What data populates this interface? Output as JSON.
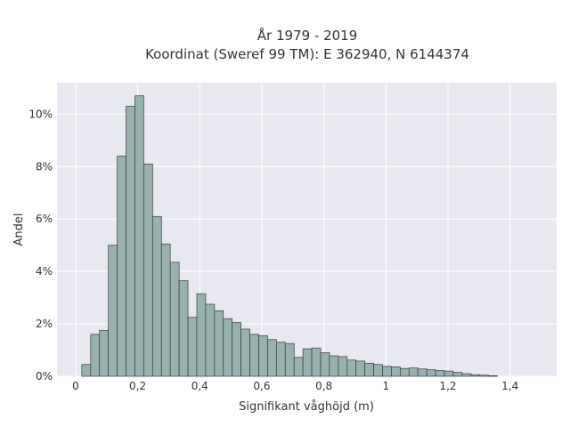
{
  "chart_data": {
    "type": "bar",
    "title": "År 1979 - 2019",
    "subtitle": "Koordinat (Sweref 99 TM): E 362940, N 6144374",
    "xlabel": "Signifikant våghöjd (m)",
    "ylabel": "Andel",
    "xlim": [
      -0.06,
      1.55
    ],
    "ylim": [
      0,
      11.2
    ],
    "grid": true,
    "legend": "none",
    "x_ticks": [
      {
        "value": 0,
        "label": "0"
      },
      {
        "value": 0.2,
        "label": "0,2"
      },
      {
        "value": 0.4,
        "label": "0,4"
      },
      {
        "value": 0.6,
        "label": "0,6"
      },
      {
        "value": 0.8,
        "label": "0,8"
      },
      {
        "value": 1.0,
        "label": "1"
      },
      {
        "value": 1.2,
        "label": "1,2"
      },
      {
        "value": 1.4,
        "label": "1,4"
      }
    ],
    "y_ticks": [
      {
        "value": 0,
        "label": "0%"
      },
      {
        "value": 2,
        "label": "2%"
      },
      {
        "value": 4,
        "label": "4%"
      },
      {
        "value": 6,
        "label": "6%"
      },
      {
        "value": 8,
        "label": "8%"
      },
      {
        "value": 10,
        "label": "10%"
      }
    ],
    "bin_start": 0.02,
    "bin_width": 0.0285,
    "values": [
      0.45,
      1.6,
      1.75,
      5.0,
      8.4,
      10.3,
      10.7,
      8.1,
      6.1,
      5.05,
      4.35,
      3.65,
      2.25,
      3.15,
      2.75,
      2.5,
      2.2,
      2.05,
      1.8,
      1.6,
      1.55,
      1.4,
      1.3,
      1.25,
      0.72,
      1.05,
      1.08,
      0.9,
      0.78,
      0.75,
      0.62,
      0.58,
      0.5,
      0.45,
      0.38,
      0.36,
      0.3,
      0.32,
      0.28,
      0.25,
      0.22,
      0.2,
      0.15,
      0.1,
      0.06,
      0.04,
      0.02
    ],
    "colors": {
      "bar_fill": "#97b1ae",
      "bar_stroke": "#3a3a3a",
      "plot_bg": "#e8e8f1",
      "grid": "#ffffff"
    }
  }
}
